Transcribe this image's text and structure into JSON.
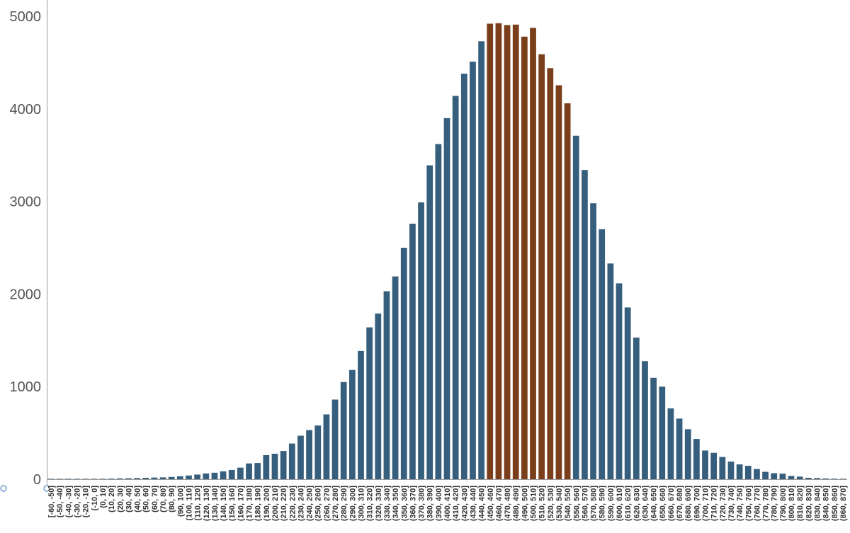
{
  "chart_data": {
    "type": "bar",
    "title": "",
    "xlabel": "",
    "ylabel": "",
    "ylim": [
      0,
      5000
    ],
    "yticks": [
      0,
      1000,
      2000,
      3000,
      4000,
      5000
    ],
    "grid": false,
    "legend": "none",
    "colors": {
      "default": "#355f7d",
      "highlight": "#7a3e1b"
    },
    "highlight_range": [
      "(450, 460]",
      "(540, 550]"
    ],
    "categories": [
      "[-60, -50]",
      "(-50, -40]",
      "(-40, -30]",
      "(-30, -20]",
      "(-20, -10]",
      "(-10, 0]",
      "(0, 10]",
      "(10, 20]",
      "(20, 30]",
      "(30, 40]",
      "(40, 50]",
      "(50, 60]",
      "(60, 70]",
      "(70, 80]",
      "(80, 90]",
      "(90, 100]",
      "(100, 110]",
      "(110, 120]",
      "(120, 130]",
      "(130, 140]",
      "(140, 150]",
      "(150, 160]",
      "(160, 170]",
      "(170, 180]",
      "(180, 190]",
      "(190, 200]",
      "(200, 210]",
      "(210, 220]",
      "(220, 230]",
      "(230, 240]",
      "(240, 250]",
      "(250, 260]",
      "(260, 270]",
      "(270, 280]",
      "(280, 290]",
      "(290, 300]",
      "(300, 310]",
      "(310, 320]",
      "(320, 330]",
      "(330, 340]",
      "(340, 350]",
      "(350, 360]",
      "(360, 370]",
      "(370, 380]",
      "(380, 390]",
      "(390, 400]",
      "(400, 410]",
      "(410, 420]",
      "(420, 430]",
      "(430, 440]",
      "(440, 450]",
      "(450, 460]",
      "(460, 470]",
      "(470, 480]",
      "(480, 490]",
      "(490, 500]",
      "(500, 510]",
      "(510, 520]",
      "(520, 530]",
      "(530, 540]",
      "(540, 550]",
      "(550, 560]",
      "(560, 570]",
      "(570, 580]",
      "(580, 590]",
      "(590, 600]",
      "(600, 610]",
      "(610, 620]",
      "(620, 630]",
      "(630, 640]",
      "(640, 650]",
      "(650, 660]",
      "(660, 670]",
      "(670, 680]",
      "(680, 690]",
      "(690, 700]",
      "(700, 710]",
      "(710, 720]",
      "(720, 730]",
      "(730, 740]",
      "(740, 750]",
      "(750, 760]",
      "(760, 770]",
      "(770, 780]",
      "(780, 790]",
      "(790, 800]",
      "(800, 810]",
      "(810, 820]",
      "(820, 830]",
      "(830, 840]",
      "(840, 850]",
      "(850, 860]",
      "(860, 870]"
    ],
    "values": [
      1,
      1,
      1,
      2,
      3,
      3,
      5,
      6,
      8,
      10,
      12,
      15,
      18,
      20,
      25,
      32,
      40,
      50,
      62,
      70,
      85,
      100,
      125,
      170,
      175,
      260,
      275,
      305,
      385,
      470,
      530,
      580,
      700,
      860,
      1050,
      1180,
      1385,
      1640,
      1790,
      2030,
      2190,
      2500,
      2760,
      2990,
      3390,
      3620,
      3900,
      4140,
      4380,
      4510,
      4730,
      4920,
      4925,
      4905,
      4910,
      4780,
      4875,
      4590,
      4440,
      4255,
      4060,
      3710,
      3340,
      2980,
      2700,
      2330,
      2115,
      1855,
      1530,
      1275,
      1095,
      1000,
      765,
      655,
      540,
      435,
      310,
      285,
      240,
      190,
      160,
      145,
      110,
      80,
      65,
      60,
      35,
      28,
      15,
      12,
      8,
      6,
      5
    ]
  }
}
